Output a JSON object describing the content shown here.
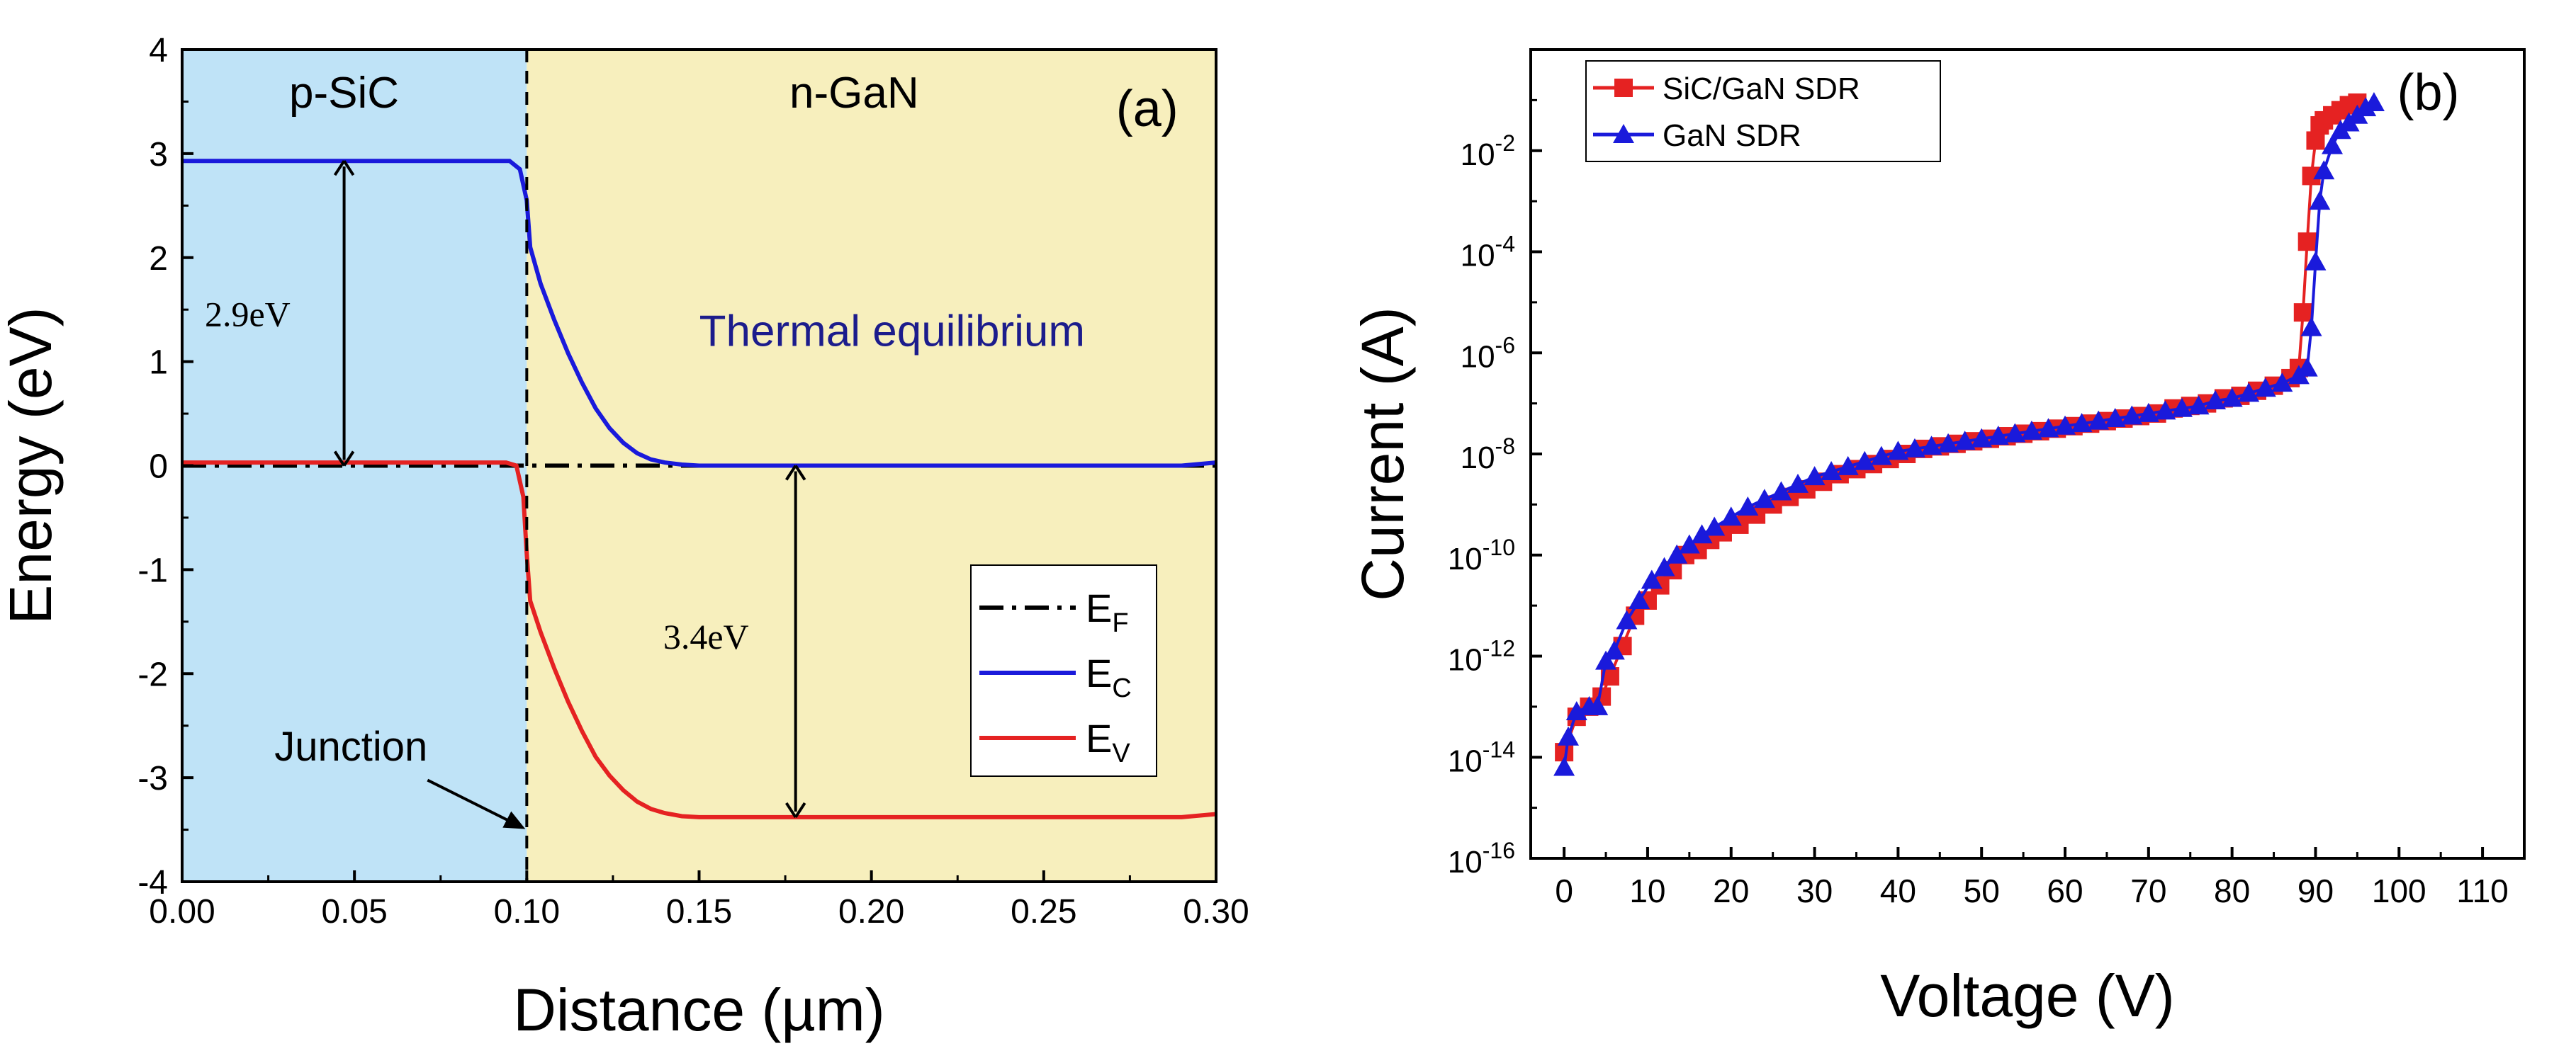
{
  "chart_data": [
    {
      "type": "line",
      "panel_label": "(a)",
      "xlabel": "Distance (µm)",
      "ylabel": "Energy (eV)",
      "xlim": [
        0.0,
        0.3
      ],
      "ylim": [
        -4,
        4
      ],
      "xticks": [
        0.0,
        0.05,
        0.1,
        0.15,
        0.2,
        0.25,
        0.3
      ],
      "xtick_labels": [
        "0.00",
        "0.05",
        "0.10",
        "0.15",
        "0.20",
        "0.25",
        "0.30"
      ],
      "yticks": [
        -4,
        -3,
        -2,
        -1,
        0,
        1,
        2,
        3,
        4
      ],
      "ytick_labels": [
        "-4",
        "-3",
        "-2",
        "-1",
        "0",
        "1",
        "2",
        "3",
        "4"
      ],
      "regions": [
        {
          "name": "p-SiC",
          "x_range": [
            0.0,
            0.1
          ],
          "color": "#bfe3f7"
        },
        {
          "name": "n-GaN",
          "x_range": [
            0.1,
            0.3
          ],
          "color": "#f7efbd"
        }
      ],
      "annotations": {
        "thermal": "Thermal equilibrium",
        "gap_sic": "2.9eV",
        "gap_gan": "3.4eV",
        "junction": "Junction"
      },
      "annotation_data": {
        "gap_sic_x": 0.047,
        "gap_sic_y": [
          0.0,
          2.93
        ],
        "gap_gan_x": 0.178,
        "gap_gan_y": [
          -3.38,
          0.0
        ],
        "junction_x": 0.1,
        "junction_y": -3.5
      },
      "series": [
        {
          "name": "EF",
          "legend_main": "E",
          "legend_sub": "F",
          "color": "#000000",
          "dash": "dashdot",
          "x": [
            0.0,
            0.3
          ],
          "y": [
            0.0,
            0.0
          ]
        },
        {
          "name": "EC",
          "legend_main": "E",
          "legend_sub": "C",
          "color": "#1a1adb",
          "x": [
            0.0,
            0.095,
            0.098,
            0.1,
            0.101,
            0.104,
            0.108,
            0.112,
            0.116,
            0.12,
            0.124,
            0.128,
            0.132,
            0.136,
            0.14,
            0.145,
            0.15,
            0.16,
            0.2,
            0.25,
            0.29,
            0.3
          ],
          "y": [
            2.93,
            2.93,
            2.85,
            2.55,
            2.1,
            1.75,
            1.4,
            1.08,
            0.8,
            0.55,
            0.36,
            0.22,
            0.12,
            0.06,
            0.03,
            0.01,
            0.0,
            0.0,
            0.0,
            0.0,
            0.0,
            0.03
          ]
        },
        {
          "name": "EV",
          "legend_main": "E",
          "legend_sub": "V",
          "color": "#e52222",
          "x": [
            0.0,
            0.094,
            0.097,
            0.099,
            0.1,
            0.101,
            0.104,
            0.108,
            0.112,
            0.116,
            0.12,
            0.124,
            0.128,
            0.132,
            0.136,
            0.14,
            0.145,
            0.15,
            0.2,
            0.25,
            0.29,
            0.3
          ],
          "y": [
            0.03,
            0.03,
            0.0,
            -0.3,
            -0.85,
            -1.3,
            -1.6,
            -1.95,
            -2.27,
            -2.55,
            -2.8,
            -2.98,
            -3.12,
            -3.23,
            -3.3,
            -3.34,
            -3.37,
            -3.38,
            -3.38,
            -3.38,
            -3.38,
            -3.35
          ]
        }
      ]
    },
    {
      "type": "scatter",
      "panel_label": "(b)",
      "xlabel": "Voltage (V)",
      "ylabel": "Current (A)",
      "y_scale": "log",
      "xlim": [
        -4,
        115
      ],
      "ylim_exp": [
        -16,
        0
      ],
      "xticks": [
        0,
        10,
        20,
        30,
        40,
        50,
        60,
        70,
        80,
        90,
        100,
        110
      ],
      "xtick_labels": [
        "0",
        "10",
        "20",
        "30",
        "40",
        "50",
        "60",
        "70",
        "80",
        "90",
        "100",
        "110"
      ],
      "ytick_exponents": [
        -16,
        -14,
        -12,
        -10,
        -8,
        -6,
        -4,
        -2
      ],
      "ytick_base": "10",
      "ytick_exp_labels": [
        "-16",
        "-14",
        "-12",
        "-10",
        "-8",
        "-6",
        "-4",
        "-2"
      ],
      "series": [
        {
          "name": "SiC/GaN SDR",
          "color": "#e52222",
          "marker": "square",
          "x": [
            0,
            1.5,
            3,
            4.5,
            5.5,
            7,
            8.5,
            10,
            11.5,
            13,
            14.5,
            16,
            17.5,
            19,
            21,
            23,
            25,
            27,
            29,
            31,
            33,
            35,
            37,
            39,
            41,
            43,
            45,
            47,
            49,
            51,
            53,
            55,
            57,
            59,
            61,
            63,
            65,
            67,
            69,
            71,
            73,
            75,
            77,
            79,
            81,
            83,
            85,
            87,
            88,
            88.5,
            89,
            89.5,
            90,
            90.5,
            91,
            92,
            93,
            94,
            95
          ],
          "log_y": [
            -13.9,
            -13.2,
            -13.0,
            -12.8,
            -12.4,
            -11.8,
            -11.2,
            -10.9,
            -10.6,
            -10.3,
            -10.0,
            -9.9,
            -9.7,
            -9.55,
            -9.4,
            -9.2,
            -9.0,
            -8.85,
            -8.7,
            -8.55,
            -8.4,
            -8.3,
            -8.2,
            -8.1,
            -8.0,
            -7.9,
            -7.85,
            -7.8,
            -7.75,
            -7.7,
            -7.65,
            -7.6,
            -7.55,
            -7.5,
            -7.45,
            -7.4,
            -7.35,
            -7.3,
            -7.25,
            -7.2,
            -7.1,
            -7.05,
            -7.0,
            -6.9,
            -6.85,
            -6.75,
            -6.65,
            -6.5,
            -6.3,
            -5.2,
            -3.8,
            -2.5,
            -1.8,
            -1.5,
            -1.4,
            -1.3,
            -1.2,
            -1.1,
            -1.05
          ]
        },
        {
          "name": "GaN SDR",
          "color": "#1a1adb",
          "marker": "triangle",
          "x": [
            0,
            0.5,
            1.5,
            3,
            4,
            5,
            6,
            7.5,
            9,
            10.5,
            12,
            13.5,
            15,
            16.5,
            18,
            20,
            22,
            24,
            26,
            28,
            30,
            32,
            34,
            36,
            38,
            40,
            42,
            44,
            46,
            48,
            50,
            52,
            54,
            56,
            58,
            60,
            62,
            64,
            66,
            68,
            70,
            72,
            74,
            76,
            78,
            80,
            82,
            84,
            86,
            88,
            89,
            89.5,
            90,
            90.5,
            91,
            92,
            93,
            94,
            95,
            96,
            97
          ],
          "log_y": [
            -14.2,
            -13.6,
            -13.1,
            -13.0,
            -13.0,
            -12.1,
            -11.9,
            -11.3,
            -10.9,
            -10.5,
            -10.25,
            -10.0,
            -9.8,
            -9.6,
            -9.45,
            -9.25,
            -9.05,
            -8.9,
            -8.75,
            -8.6,
            -8.45,
            -8.35,
            -8.25,
            -8.15,
            -8.05,
            -7.95,
            -7.9,
            -7.85,
            -7.8,
            -7.75,
            -7.7,
            -7.65,
            -7.6,
            -7.55,
            -7.5,
            -7.45,
            -7.4,
            -7.35,
            -7.3,
            -7.25,
            -7.2,
            -7.15,
            -7.1,
            -7.05,
            -6.95,
            -6.9,
            -6.8,
            -6.7,
            -6.6,
            -6.45,
            -6.3,
            -5.5,
            -4.2,
            -3.0,
            -2.4,
            -1.9,
            -1.6,
            -1.45,
            -1.3,
            -1.15,
            -1.05
          ]
        }
      ]
    }
  ]
}
